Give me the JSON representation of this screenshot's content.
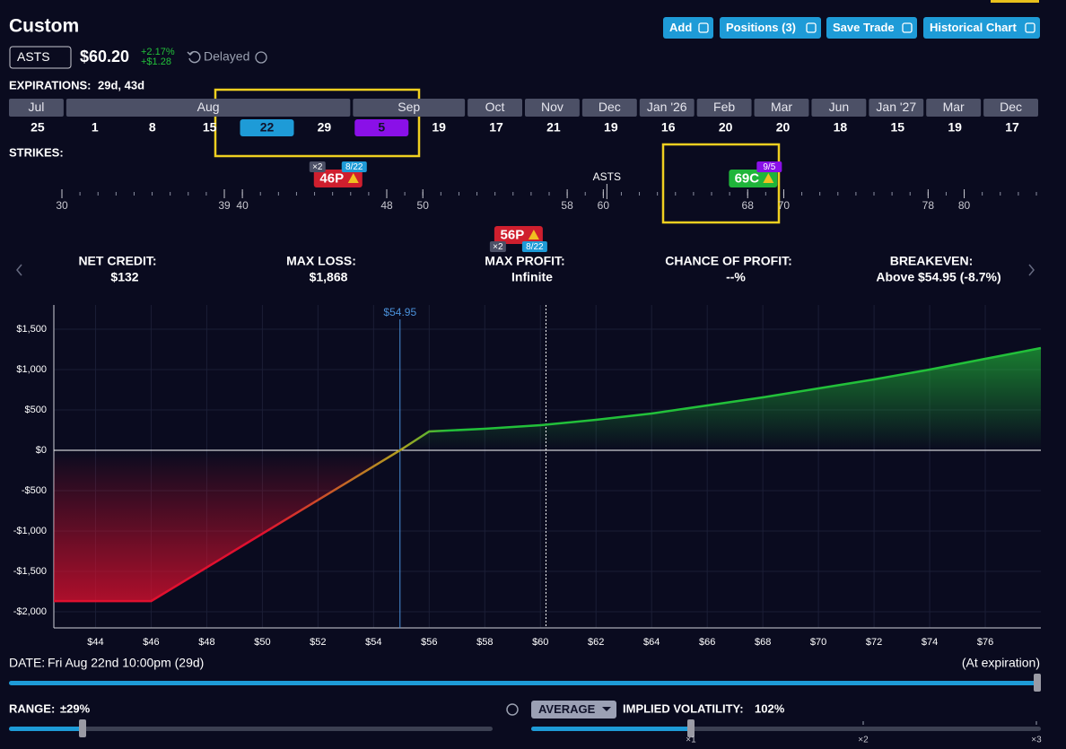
{
  "header": {
    "title": "Custom",
    "buttons": [
      "Add",
      "Positions (3)",
      "Save Trade",
      "Historical Chart"
    ]
  },
  "quote": {
    "symbol": "ASTS",
    "price": "$60.20",
    "change_pct": "+2.17%",
    "change_abs": "+$1.28",
    "status": "Delayed"
  },
  "expirations": {
    "label": "EXPIRATIONS:",
    "selected": "29d, 43d",
    "months": [
      {
        "label": "Jul",
        "span": 1
      },
      {
        "label": "Aug",
        "span": 5
      },
      {
        "label": "Sep",
        "span": 2
      },
      {
        "label": "Oct",
        "span": 1
      },
      {
        "label": "Nov",
        "span": 1
      },
      {
        "label": "Dec",
        "span": 1
      },
      {
        "label": "Jan '26",
        "span": 1
      },
      {
        "label": "Feb",
        "span": 1
      },
      {
        "label": "Mar",
        "span": 1
      },
      {
        "label": "Jun",
        "span": 1
      },
      {
        "label": "Jan '27",
        "span": 1
      },
      {
        "label": "Mar",
        "span": 1
      },
      {
        "label": "Dec",
        "span": 1
      }
    ],
    "days": [
      "25",
      "1",
      "8",
      "15",
      "22",
      "29",
      "5",
      "19",
      "17",
      "21",
      "19",
      "16",
      "20",
      "20",
      "18",
      "15",
      "19",
      "17"
    ],
    "selected_days": [
      4,
      6
    ]
  },
  "strikes": {
    "label": "STRIKES:",
    "range": [
      30,
      84
    ],
    "ticks": [
      30,
      39,
      40,
      48,
      50,
      58,
      60,
      68,
      70,
      78,
      80
    ],
    "underlying": {
      "label": "ASTS",
      "value": 60.2
    },
    "legs": [
      {
        "label": "46P",
        "strike": 46,
        "qty": "×2",
        "exp": "8/22",
        "color": "#cf1f2e",
        "exp_color": "#1e9bd7"
      },
      {
        "label": "56P",
        "strike": 56,
        "qty": "×2",
        "exp": "8/22",
        "color": "#cf1f2e",
        "exp_color": "#1e9bd7"
      },
      {
        "label": "69C",
        "strike": 69,
        "exp": "9/5",
        "color": "#1fb53a",
        "exp_color": "#8a10e8"
      }
    ]
  },
  "stats": [
    {
      "label": "NET CREDIT:",
      "value": "$132"
    },
    {
      "label": "MAX LOSS:",
      "value": "$1,868"
    },
    {
      "label": "MAX PROFIT:",
      "value": "Infinite"
    },
    {
      "label": "CHANCE OF PROFIT:",
      "value": "--%"
    },
    {
      "label": "BREAKEVEN:",
      "value": "Above $54.95 (-8.7%)"
    }
  ],
  "chart_data": {
    "type": "line",
    "x": [
      42.5,
      46,
      54.95,
      56,
      58,
      60,
      62,
      64,
      66,
      68,
      70,
      72,
      74,
      76,
      78
    ],
    "values": [
      -1868,
      -1868,
      0,
      233,
      267,
      311,
      378,
      456,
      556,
      656,
      767,
      878,
      1000,
      1133,
      1267
    ],
    "xlim": [
      42.5,
      78
    ],
    "ylim": [
      -2200,
      1800
    ],
    "xticks": [
      {
        "value": 44,
        "label": "$44"
      },
      {
        "value": 46,
        "label": "$46"
      },
      {
        "value": 48,
        "label": "$48"
      },
      {
        "value": 50,
        "label": "$50"
      },
      {
        "value": 52,
        "label": "$52"
      },
      {
        "value": 54,
        "label": "$54"
      },
      {
        "value": 56,
        "label": "$56"
      },
      {
        "value": 58,
        "label": "$58"
      },
      {
        "value": 60,
        "label": "$60"
      },
      {
        "value": 62,
        "label": "$62"
      },
      {
        "value": 64,
        "label": "$64"
      },
      {
        "value": 66,
        "label": "$66"
      },
      {
        "value": 68,
        "label": "$68"
      },
      {
        "value": 70,
        "label": "$70"
      },
      {
        "value": 72,
        "label": "$72"
      },
      {
        "value": 74,
        "label": "$74"
      },
      {
        "value": 76,
        "label": "$76"
      }
    ],
    "yticks": [
      {
        "value": -2000,
        "label": "-$2,000"
      },
      {
        "value": -1500,
        "label": "-$1,500"
      },
      {
        "value": -1000,
        "label": "-$1,000"
      },
      {
        "value": -500,
        "label": "-$500"
      },
      {
        "value": 0,
        "label": "$0"
      },
      {
        "value": 500,
        "label": "$500"
      },
      {
        "value": 1000,
        "label": "$1,000"
      },
      {
        "value": 1500,
        "label": "$1,500"
      }
    ],
    "breakeven": {
      "value": 54.95,
      "label": "$54.95"
    },
    "current_price": 60.2,
    "grid": true,
    "loss_color": "#e0102f",
    "profit_color": "#22c03a"
  },
  "footer": {
    "date_label": "DATE:",
    "date": "Fri Aug 22nd 10:00pm (29d)",
    "date_right": "(At expiration)",
    "range_label": "RANGE:",
    "range": "±29%",
    "mode": "AVERAGE",
    "iv_label": "IMPLIED VOLATILITY:",
    "iv": "102%",
    "iv_scale": [
      "×1",
      "×2",
      "×3"
    ]
  }
}
